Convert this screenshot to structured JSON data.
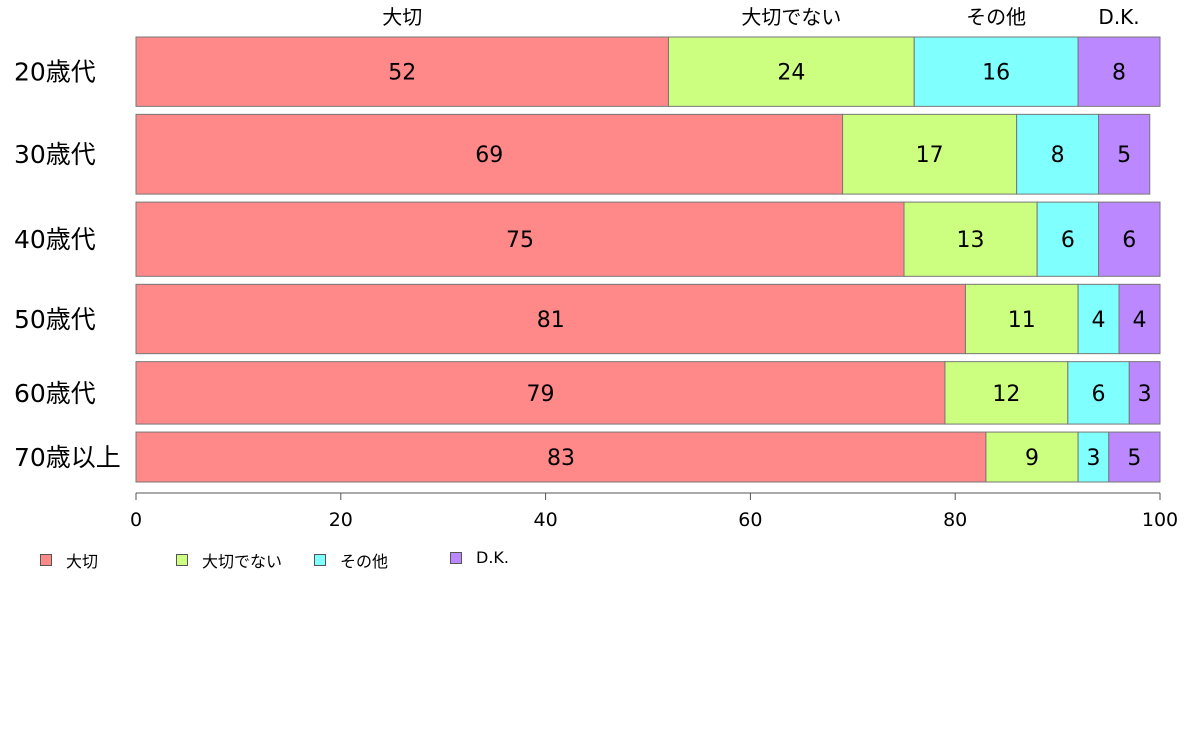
{
  "chart_data": {
    "type": "bar",
    "orientation": "horizontal",
    "stacked": true,
    "categories": [
      "20歳代",
      "30歳代",
      "40歳代",
      "50歳代",
      "60歳代",
      "70歳以上"
    ],
    "category_weights": [
      1.0,
      1.15,
      1.07,
      1.0,
      0.9,
      0.72
    ],
    "series": [
      {
        "name": "大切",
        "color": "#ff8888",
        "values": [
          52,
          69,
          75,
          81,
          79,
          83
        ]
      },
      {
        "name": "大切でない",
        "color": "#ccff80",
        "values": [
          24,
          17,
          13,
          11,
          12,
          9
        ]
      },
      {
        "name": "その他",
        "color": "#80ffff",
        "values": [
          16,
          8,
          6,
          4,
          6,
          3
        ]
      },
      {
        "name": "D.K.",
        "color": "#bb88ff",
        "values": [
          8,
          5,
          6,
          4,
          3,
          5
        ]
      }
    ],
    "top_labels": [
      "大切",
      "大切でない",
      "その他",
      "D.K."
    ],
    "xlim": [
      0,
      100
    ],
    "xticks": [
      "0",
      "20",
      "40",
      "60",
      "80",
      "100"
    ],
    "legend_position": "bottom-left",
    "grid": false
  }
}
